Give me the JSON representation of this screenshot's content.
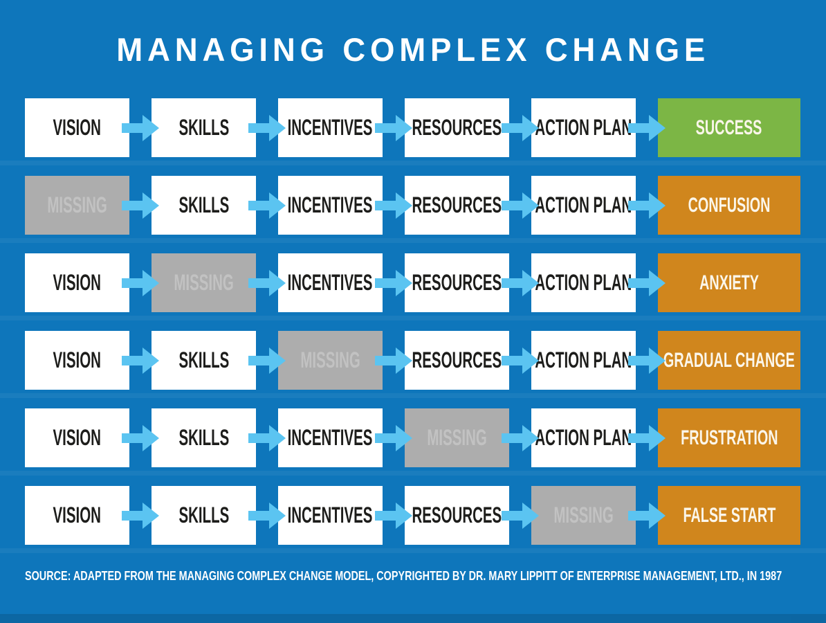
{
  "title": "MANAGING COMPLEX CHANGE",
  "source": "SOURCE: ADAPTED FROM THE MANAGING COMPLEX CHANGE MODEL, COPYRIGHTED BY DR. MARY LIPPITT OF ENTERPRISE MANAGEMENT, LTD., IN 1987",
  "colors": {
    "background": "#0e76bb",
    "arrow": "#5bc4f1",
    "box_white": "#ffffff",
    "box_missing": "#adadad",
    "missing_text": "#c2c2c2",
    "step_text": "#1d1d1b",
    "result_text": "#fbf6ea",
    "success": "#7cb645",
    "outcome": "#d0861d"
  },
  "columns": [
    "VISION",
    "SKILLS",
    "INCENTIVES",
    "RESOURCES",
    "ACTION PLAN"
  ],
  "rows": [
    {
      "steps": [
        {
          "label": "VISION",
          "missing": false
        },
        {
          "label": "SKILLS",
          "missing": false
        },
        {
          "label": "INCENTIVES",
          "missing": false
        },
        {
          "label": "RESOURCES",
          "missing": false
        },
        {
          "label": "ACTION PLAN",
          "missing": false
        }
      ],
      "result": {
        "label": "SUCCESS",
        "variant": "success"
      }
    },
    {
      "steps": [
        {
          "label": "MISSING",
          "missing": true
        },
        {
          "label": "SKILLS",
          "missing": false
        },
        {
          "label": "INCENTIVES",
          "missing": false
        },
        {
          "label": "RESOURCES",
          "missing": false
        },
        {
          "label": "ACTION PLAN",
          "missing": false
        }
      ],
      "result": {
        "label": "CONFUSION",
        "variant": "outcome"
      }
    },
    {
      "steps": [
        {
          "label": "VISION",
          "missing": false
        },
        {
          "label": "MISSING",
          "missing": true
        },
        {
          "label": "INCENTIVES",
          "missing": false
        },
        {
          "label": "RESOURCES",
          "missing": false
        },
        {
          "label": "ACTION PLAN",
          "missing": false
        }
      ],
      "result": {
        "label": "ANXIETY",
        "variant": "outcome"
      }
    },
    {
      "steps": [
        {
          "label": "VISION",
          "missing": false
        },
        {
          "label": "SKILLS",
          "missing": false
        },
        {
          "label": "MISSING",
          "missing": true
        },
        {
          "label": "RESOURCES",
          "missing": false
        },
        {
          "label": "ACTION PLAN",
          "missing": false
        }
      ],
      "result": {
        "label": "GRADUAL CHANGE",
        "variant": "outcome"
      }
    },
    {
      "steps": [
        {
          "label": "VISION",
          "missing": false
        },
        {
          "label": "SKILLS",
          "missing": false
        },
        {
          "label": "INCENTIVES",
          "missing": false
        },
        {
          "label": "MISSING",
          "missing": true
        },
        {
          "label": "ACTION PLAN",
          "missing": false
        }
      ],
      "result": {
        "label": "FRUSTRATION",
        "variant": "outcome"
      }
    },
    {
      "steps": [
        {
          "label": "VISION",
          "missing": false
        },
        {
          "label": "SKILLS",
          "missing": false
        },
        {
          "label": "INCENTIVES",
          "missing": false
        },
        {
          "label": "RESOURCES",
          "missing": false
        },
        {
          "label": "MISSING",
          "missing": true
        }
      ],
      "result": {
        "label": "FALSE START",
        "variant": "outcome"
      }
    }
  ]
}
